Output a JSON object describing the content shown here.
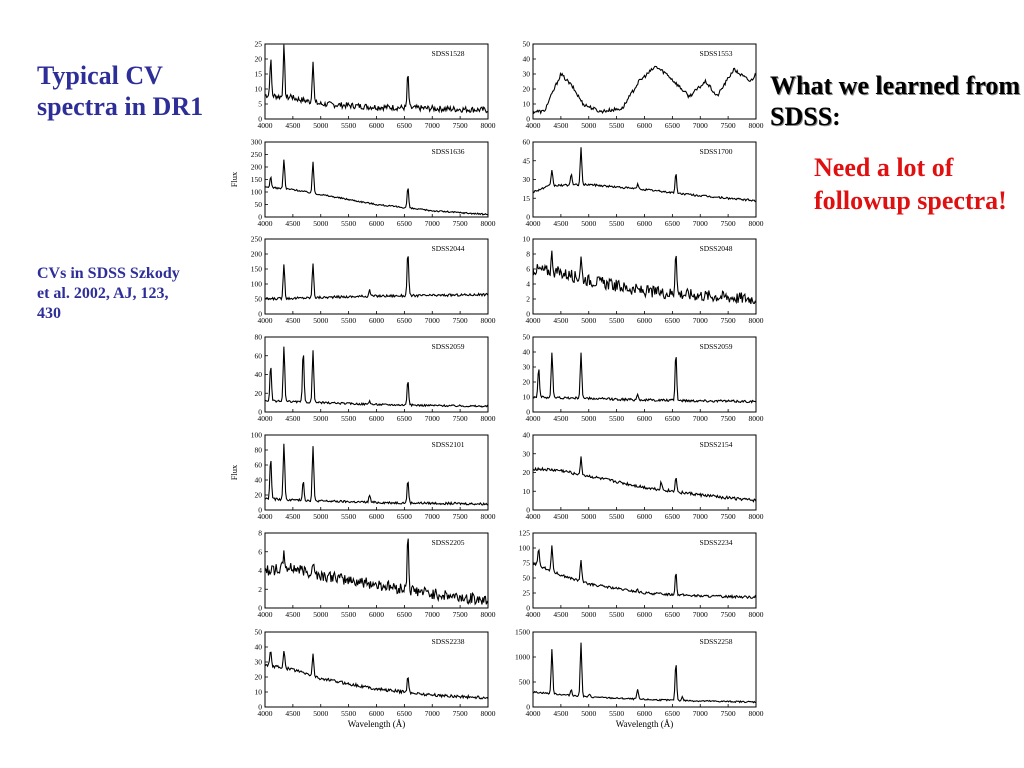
{
  "slide": {
    "title": "Typical CV spectra in DR1",
    "citation": "CVs in  SDSS Szkody et al. 2002, AJ, 123, 430",
    "learned_heading": "What we learned from SDSS",
    "learned_colon": ":",
    "followup_text": "Need a lot of followup spectra!"
  },
  "chart_data": [
    {
      "type": "line",
      "name": "SDSS1528",
      "xlim": [
        4000,
        8000
      ],
      "ylim": [
        0,
        25
      ],
      "yticks": [
        0,
        5,
        10,
        15,
        20,
        25
      ],
      "continuum": [
        [
          4000,
          8
        ],
        [
          4500,
          7
        ],
        [
          5000,
          5
        ],
        [
          6000,
          4
        ],
        [
          8000,
          3
        ]
      ],
      "lines": [
        [
          4102,
          20
        ],
        [
          4340,
          24
        ],
        [
          4861,
          20
        ],
        [
          5876,
          4
        ],
        [
          6563,
          15
        ],
        [
          4471,
          8
        ]
      ],
      "noise": 1.0
    },
    {
      "type": "line",
      "name": "SDSS1553",
      "xlim": [
        4000,
        8000
      ],
      "ylim": [
        0,
        50
      ],
      "yticks": [
        0,
        10,
        20,
        30,
        40,
        50
      ],
      "continuum": [
        [
          4000,
          5
        ],
        [
          4200,
          5
        ],
        [
          4500,
          30
        ],
        [
          4700,
          22
        ],
        [
          4900,
          10
        ],
        [
          5200,
          5
        ],
        [
          5600,
          7
        ],
        [
          5900,
          25
        ],
        [
          6200,
          35
        ],
        [
          6400,
          30
        ],
        [
          6800,
          15
        ],
        [
          7100,
          25
        ],
        [
          7300,
          15
        ],
        [
          7600,
          33
        ],
        [
          7900,
          25
        ],
        [
          8000,
          30
        ]
      ],
      "lines": [],
      "noise": 1.2
    },
    {
      "type": "line",
      "name": "SDSS1636",
      "ylabel": "Flux",
      "xlim": [
        4000,
        8000
      ],
      "ylim": [
        0,
        300
      ],
      "yticks": [
        0,
        50,
        100,
        150,
        200,
        250,
        300
      ],
      "continuum": [
        [
          4000,
          120
        ],
        [
          4500,
          110
        ],
        [
          5000,
          90
        ],
        [
          6000,
          50
        ],
        [
          7000,
          25
        ],
        [
          8000,
          10
        ]
      ],
      "lines": [
        [
          4102,
          160
        ],
        [
          4340,
          230
        ],
        [
          4861,
          220
        ],
        [
          5876,
          55
        ],
        [
          6563,
          120
        ]
      ],
      "noise": 3
    },
    {
      "type": "line",
      "name": "SDSS1700",
      "xlim": [
        4000,
        8000
      ],
      "ylim": [
        0,
        60
      ],
      "yticks": [
        0,
        15,
        30,
        45,
        60
      ],
      "continuum": [
        [
          4000,
          20
        ],
        [
          4300,
          25
        ],
        [
          5000,
          26
        ],
        [
          6000,
          22
        ],
        [
          7000,
          17
        ],
        [
          8000,
          13
        ]
      ],
      "lines": [
        [
          4340,
          38
        ],
        [
          4861,
          55
        ],
        [
          4686,
          35
        ],
        [
          5876,
          26
        ],
        [
          6563,
          35
        ]
      ],
      "noise": 0.8
    },
    {
      "type": "line",
      "name": "SDSS2044",
      "xlim": [
        4000,
        8000
      ],
      "ylim": [
        0,
        250
      ],
      "yticks": [
        0,
        50,
        100,
        150,
        200,
        250
      ],
      "continuum": [
        [
          4000,
          50
        ],
        [
          5000,
          55
        ],
        [
          6000,
          60
        ],
        [
          7000,
          62
        ],
        [
          8000,
          65
        ]
      ],
      "lines": [
        [
          4340,
          170
        ],
        [
          4861,
          170
        ],
        [
          5876,
          80
        ],
        [
          6563,
          210
        ]
      ],
      "noise": 4
    },
    {
      "type": "line",
      "name": "SDSS2048",
      "xlim": [
        4000,
        8000
      ],
      "ylim": [
        0,
        10
      ],
      "yticks": [
        0,
        2,
        4,
        6,
        8,
        10
      ],
      "continuum": [
        [
          4000,
          6
        ],
        [
          4500,
          5.5
        ],
        [
          5000,
          4.5
        ],
        [
          6000,
          3
        ],
        [
          7000,
          2.5
        ],
        [
          8000,
          2
        ]
      ],
      "lines": [
        [
          4340,
          8
        ],
        [
          4861,
          7.5
        ],
        [
          6563,
          9
        ]
      ],
      "noise": 0.8
    },
    {
      "type": "line",
      "name": "SDSS2059",
      "xlim": [
        4000,
        8000
      ],
      "ylim": [
        0,
        80
      ],
      "yticks": [
        0,
        20,
        40,
        60,
        80
      ],
      "continuum": [
        [
          4000,
          12
        ],
        [
          5000,
          10
        ],
        [
          6000,
          8
        ],
        [
          8000,
          6
        ]
      ],
      "lines": [
        [
          4102,
          50
        ],
        [
          4340,
          70
        ],
        [
          4686,
          65
        ],
        [
          4861,
          65
        ],
        [
          5876,
          12
        ],
        [
          6563,
          35
        ]
      ],
      "noise": 1.0
    },
    {
      "type": "line",
      "name": "SDSS2059",
      "xlim": [
        4000,
        8000
      ],
      "ylim": [
        0,
        50
      ],
      "yticks": [
        0,
        10,
        20,
        30,
        40,
        50
      ],
      "continuum": [
        [
          4000,
          10
        ],
        [
          5000,
          9
        ],
        [
          6000,
          8
        ],
        [
          8000,
          7
        ]
      ],
      "lines": [
        [
          4102,
          30
        ],
        [
          4340,
          40
        ],
        [
          4861,
          40
        ],
        [
          5876,
          12
        ],
        [
          6563,
          40
        ]
      ],
      "noise": 0.8
    },
    {
      "type": "line",
      "name": "SDSS2101",
      "ylabel": "Flux",
      "xlim": [
        4000,
        8000
      ],
      "ylim": [
        0,
        100
      ],
      "yticks": [
        0,
        20,
        40,
        60,
        80,
        100
      ],
      "continuum": [
        [
          4000,
          15
        ],
        [
          5000,
          12
        ],
        [
          6000,
          10
        ],
        [
          8000,
          8
        ]
      ],
      "lines": [
        [
          4102,
          70
        ],
        [
          4340,
          90
        ],
        [
          4686,
          40
        ],
        [
          4861,
          85
        ],
        [
          5876,
          20
        ],
        [
          6563,
          40
        ]
      ],
      "noise": 1.5
    },
    {
      "type": "line",
      "name": "SDSS2154",
      "xlim": [
        4000,
        8000
      ],
      "ylim": [
        0,
        40
      ],
      "yticks": [
        0,
        10,
        20,
        30,
        40
      ],
      "continuum": [
        [
          4000,
          22
        ],
        [
          4500,
          21
        ],
        [
          5000,
          18
        ],
        [
          6000,
          12
        ],
        [
          7000,
          8
        ],
        [
          8000,
          5
        ]
      ],
      "lines": [
        [
          4861,
          28
        ],
        [
          6300,
          15
        ],
        [
          6563,
          18
        ]
      ],
      "noise": 0.8
    },
    {
      "type": "line",
      "name": "SDSS2205",
      "xlim": [
        4000,
        8000
      ],
      "ylim": [
        0,
        8
      ],
      "yticks": [
        0,
        2,
        4,
        6,
        8
      ],
      "continuum": [
        [
          4000,
          4
        ],
        [
          4500,
          4.3
        ],
        [
          5000,
          3.5
        ],
        [
          6000,
          2.5
        ],
        [
          7000,
          1.5
        ],
        [
          8000,
          0.8
        ]
      ],
      "lines": [
        [
          4340,
          6
        ],
        [
          4861,
          5
        ],
        [
          6563,
          8
        ]
      ],
      "noise": 0.6
    },
    {
      "type": "line",
      "name": "SDSS2234",
      "xlim": [
        4000,
        8000
      ],
      "ylim": [
        0,
        125
      ],
      "yticks": [
        0,
        25,
        50,
        75,
        100,
        125
      ],
      "continuum": [
        [
          4000,
          75
        ],
        [
          4500,
          55
        ],
        [
          5000,
          40
        ],
        [
          6000,
          25
        ],
        [
          7000,
          20
        ],
        [
          8000,
          18
        ]
      ],
      "lines": [
        [
          4102,
          100
        ],
        [
          4340,
          105
        ],
        [
          4861,
          80
        ],
        [
          5876,
          30
        ],
        [
          6563,
          60
        ]
      ],
      "noise": 2
    },
    {
      "type": "line",
      "name": "SDSS2238",
      "xlim": [
        4000,
        8000
      ],
      "ylim": [
        0,
        50
      ],
      "yticks": [
        0,
        10,
        20,
        30,
        40,
        50
      ],
      "xlabel": "Wavelength (Å)",
      "continuum": [
        [
          4000,
          28
        ],
        [
          4500,
          25
        ],
        [
          5000,
          19
        ],
        [
          6000,
          12
        ],
        [
          7000,
          8
        ],
        [
          8000,
          6
        ]
      ],
      "lines": [
        [
          4102,
          38
        ],
        [
          4340,
          38
        ],
        [
          4861,
          35
        ],
        [
          6563,
          20
        ]
      ],
      "noise": 1.0
    },
    {
      "type": "line",
      "name": "SDSS2258",
      "xlim": [
        4000,
        8000
      ],
      "ylim": [
        0,
        1500
      ],
      "yticks": [
        0,
        500,
        1000,
        1500
      ],
      "xlabel": "Wavelength (Å)",
      "continuum": [
        [
          4000,
          300
        ],
        [
          5000,
          200
        ],
        [
          6000,
          150
        ],
        [
          7000,
          120
        ],
        [
          8000,
          100
        ]
      ],
      "lines": [
        [
          4340,
          1150
        ],
        [
          4686,
          350
        ],
        [
          4861,
          1300
        ],
        [
          5015,
          250
        ],
        [
          5169,
          200
        ],
        [
          5876,
          350
        ],
        [
          6563,
          900
        ],
        [
          6678,
          200
        ]
      ],
      "noise": 15
    }
  ]
}
